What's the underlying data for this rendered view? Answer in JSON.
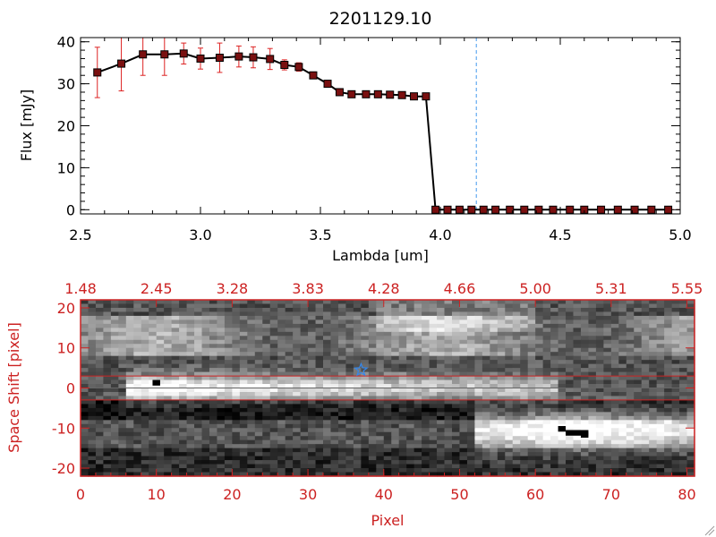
{
  "chart_data": [
    {
      "type": "line",
      "title": "2201129.10",
      "xlabel": "Lambda [um]",
      "ylabel": "Flux [mJy]",
      "xlim": [
        2.5,
        5.0
      ],
      "ylim": [
        -1,
        41
      ],
      "x_ticks": [
        "2.5",
        "3.0",
        "3.5",
        "4.0",
        "4.5",
        "5.0"
      ],
      "y_ticks": [
        "0",
        "10",
        "20",
        "30",
        "40"
      ],
      "vline_x": 4.15,
      "line_color": "#000000",
      "marker_color": "#7a1010",
      "errorbar_color": "#dd2222",
      "vline_color": "#4499ee",
      "series": [
        {
          "x": [
            2.57,
            2.67,
            2.76,
            2.85,
            2.93,
            3.0,
            3.08,
            3.16,
            3.22,
            3.29,
            3.35,
            3.41,
            3.47,
            3.53,
            3.58,
            3.63,
            3.69,
            3.74,
            3.79,
            3.84,
            3.89,
            3.94,
            3.98,
            4.03,
            4.08,
            4.13,
            4.18,
            4.23,
            4.29,
            4.35,
            4.41,
            4.47,
            4.54,
            4.6,
            4.67,
            4.74,
            4.81,
            4.88,
            4.95
          ],
          "y": [
            32.7,
            34.8,
            37.0,
            37.0,
            37.2,
            36.0,
            36.2,
            36.5,
            36.3,
            35.9,
            34.5,
            34.0,
            32.0,
            30.0,
            28.0,
            27.5,
            27.5,
            27.5,
            27.4,
            27.3,
            27.0,
            27.0,
            0.0,
            0.0,
            0.0,
            0.0,
            0.0,
            0.0,
            0.0,
            0.0,
            0.0,
            0.0,
            0.0,
            0.0,
            0.0,
            0.0,
            0.0,
            0.0,
            0.0
          ],
          "yerr": [
            6.0,
            6.5,
            5.0,
            5.0,
            2.5,
            2.5,
            3.5,
            2.5,
            2.5,
            2.5,
            1.2,
            1.0,
            0.8,
            0.8,
            0.7,
            0.6,
            0.5,
            0.5,
            0.5,
            0.5,
            0.6,
            0.6,
            0.3,
            0.3,
            0.3,
            0.3,
            0.3,
            0.3,
            0.3,
            0.3,
            0.3,
            0.3,
            0.3,
            0.3,
            0.3,
            0.3,
            0.3,
            0.3,
            0.3
          ]
        }
      ]
    },
    {
      "type": "heatmap",
      "xlabel": "Pixel",
      "ylabel": "Space Shift [pixel]",
      "xlim": [
        0,
        81
      ],
      "ylim": [
        -22,
        22
      ],
      "x_ticks": [
        "0",
        "10",
        "20",
        "30",
        "40",
        "50",
        "60",
        "70",
        "80"
      ],
      "y_ticks": [
        "-20",
        "-10",
        "0",
        "10",
        "20"
      ],
      "top_ticks": [
        "1.48",
        "2.45",
        "3.28",
        "3.83",
        "4.28",
        "4.66",
        "5.00",
        "5.31",
        "5.55"
      ],
      "accent_color": "#cc2222",
      "star_color": "#3388ee",
      "star": [
        37,
        4.5
      ],
      "aperture_lines": [
        3,
        -3
      ],
      "source_rows": [
        {
          "y": 0,
          "x_from": 6,
          "x_to": 62,
          "peak": 245,
          "peak_x": 9.5,
          "decay": 0.022,
          "width": 2.2
        },
        {
          "y": -10.5,
          "x_from": 52,
          "x_to": 81,
          "peak": 255,
          "peak_x": 65,
          "decay": 0.03,
          "width": 3.5
        }
      ],
      "dark_blobs": [
        {
          "x": 9.5,
          "y": 1.5,
          "w": 1,
          "h": 1
        },
        {
          "x": 63,
          "y": -10,
          "w": 1,
          "h": 1
        },
        {
          "x": 64,
          "y": -11,
          "w": 3,
          "h": 1
        },
        {
          "x": 66,
          "y": -11.5,
          "w": 1,
          "h": 1
        }
      ]
    }
  ]
}
